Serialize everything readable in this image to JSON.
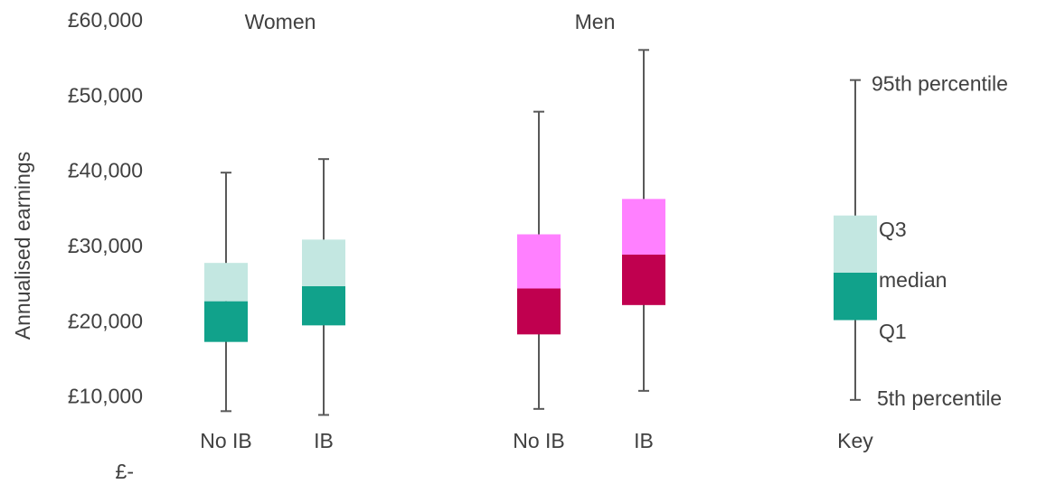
{
  "chart_data": {
    "type": "box",
    "ylabel": "Annualised earnings",
    "ylim": [
      0,
      60000
    ],
    "y_ticks": [
      {
        "value": 0,
        "label": "£-"
      },
      {
        "value": 10000,
        "label": "£10,000"
      },
      {
        "value": 20000,
        "label": "£20,000"
      },
      {
        "value": 30000,
        "label": "£30,000"
      },
      {
        "value": 40000,
        "label": "£40,000"
      },
      {
        "value": 50000,
        "label": "£50,000"
      },
      {
        "value": 60000,
        "label": "£60,000"
      }
    ],
    "groups": [
      {
        "name": "Women",
        "color_lower": "#11a28b",
        "color_upper": "#c3e7e1",
        "boxes": [
          {
            "category": "No IB",
            "p5": 8000,
            "q1": 17200,
            "median": 22600,
            "q3": 27700,
            "p95": 39700
          },
          {
            "category": "IB",
            "p5": 7500,
            "q1": 19400,
            "median": 24600,
            "q3": 30800,
            "p95": 41500
          }
        ]
      },
      {
        "name": "Men",
        "color_lower": "#c0004f",
        "color_upper": "#ff80ff",
        "boxes": [
          {
            "category": "No IB",
            "p5": 8300,
            "q1": 18200,
            "median": 24300,
            "q3": 31500,
            "p95": 47800
          },
          {
            "category": "IB",
            "p5": 10700,
            "q1": 22100,
            "median": 28800,
            "q3": 36200,
            "p95": 56000
          }
        ]
      }
    ],
    "key": {
      "category": "Key",
      "color_lower": "#11a28b",
      "color_upper": "#c3e7e1",
      "p5": 9500,
      "q1": 20100,
      "median": 26400,
      "q3": 34000,
      "p95": 52000,
      "labels": {
        "p95": "95th percentile",
        "q3": "Q3",
        "median": "median",
        "q1": "Q1",
        "p5": "5th percentile"
      }
    }
  }
}
